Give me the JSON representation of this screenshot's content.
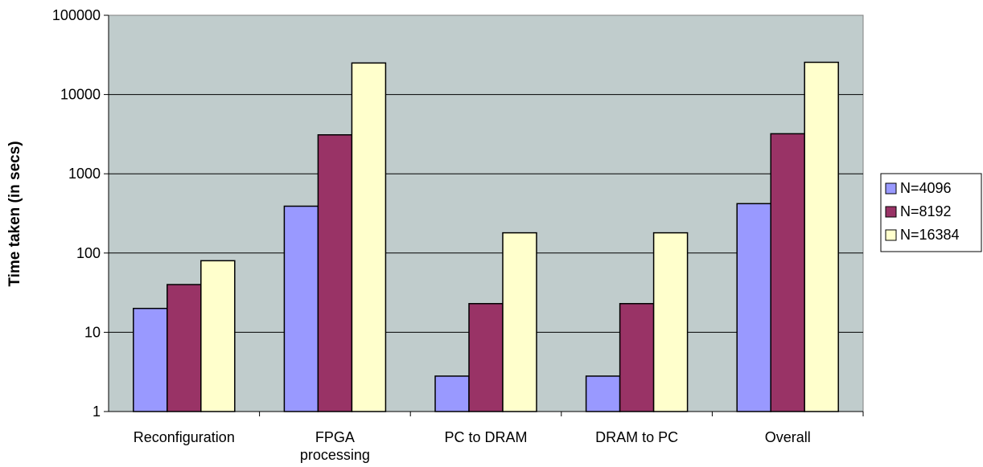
{
  "chart_data": {
    "type": "bar",
    "title": "",
    "xlabel": "",
    "ylabel": "Time taken (in secs)",
    "y_scale": "log",
    "ylim": [
      1,
      100000
    ],
    "y_ticks": [
      "1",
      "10",
      "100",
      "1000",
      "10000",
      "100000"
    ],
    "grid": true,
    "legend_position": "right",
    "categories": [
      [
        "Reconfiguration"
      ],
      [
        "FPGA",
        "processing"
      ],
      [
        "PC to DRAM"
      ],
      [
        "DRAM to PC"
      ],
      [
        "Overall"
      ]
    ],
    "series": [
      {
        "name": "N=4096",
        "color": "#9999ff",
        "values": [
          20,
          390,
          2.8,
          2.8,
          420
        ]
      },
      {
        "name": "N=8192",
        "color": "#993366",
        "values": [
          40,
          3100,
          23,
          23,
          3200
        ]
      },
      {
        "name": "N=16384",
        "color": "#ffffcc",
        "values": [
          80,
          25000,
          180,
          180,
          25500
        ]
      }
    ],
    "plot_background": "#c0cccc"
  }
}
